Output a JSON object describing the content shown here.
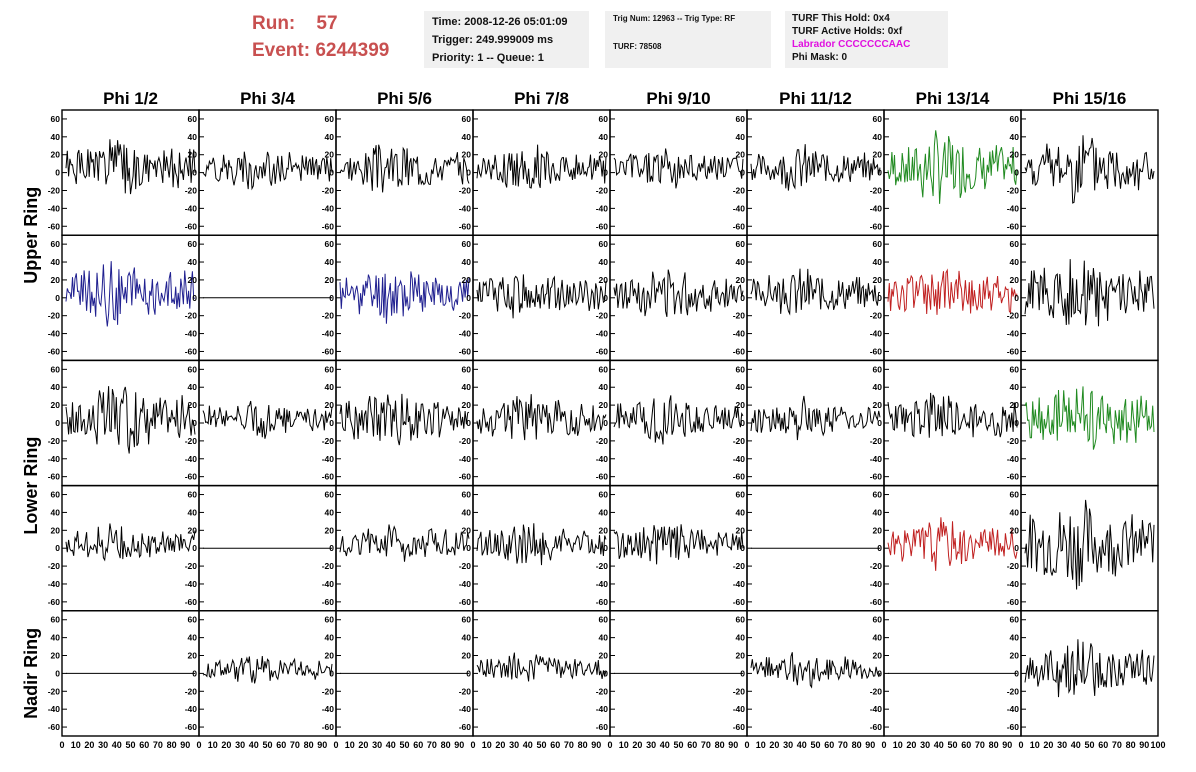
{
  "run_label": "Run:",
  "run_value": "57",
  "event_label": "Event:",
  "event_value": "6244399",
  "info_box_1": {
    "time": "Time: 2008-12-26 05:01:09",
    "trigger": "Trigger: 249.999009 ms",
    "priority": "Priority: 1 -- Queue: 1"
  },
  "info_box_2": {
    "trig": "Trig Num: 12963 -- Trig Type: RF",
    "turf": "TURF: 78508"
  },
  "info_box_3": {
    "hold": "TURF This Hold: 0x4",
    "active": "TURF Active Holds: 0xf",
    "labrador": "Labrador CCCCCCCAAC",
    "phimask": "Phi Mask: 0"
  },
  "colors": {
    "run": "#c85050",
    "labrador": "#e010e0",
    "black": "#000000",
    "blue": "#202090",
    "green": "#208a20",
    "red": "#c02020"
  },
  "chart_data": {
    "type": "line",
    "columns": [
      "Phi 1/2",
      "Phi 3/4",
      "Phi 5/6",
      "Phi 7/8",
      "Phi 9/10",
      "Phi 11/12",
      "Phi 13/14",
      "Phi 15/16"
    ],
    "rows": [
      "Upper Ring",
      "Upper Ring",
      "Lower Ring",
      "Lower Ring",
      "Nadir Ring"
    ],
    "row_labels": [
      "Upper Ring",
      "Lower Ring",
      "Nadir Ring"
    ],
    "ylim": [
      -70,
      70
    ],
    "yticks": [
      -60,
      -40,
      -20,
      0,
      20,
      40,
      60
    ],
    "xlim": [
      0,
      100
    ],
    "xticks": [
      "0",
      "10",
      "20",
      "30",
      "40",
      "50",
      "60",
      "70",
      "80",
      "90",
      "100"
    ],
    "samples": 100,
    "traces": [
      [
        {
          "c": "black",
          "a": 18,
          "s": 1
        },
        {
          "c": "black",
          "a": 13,
          "s": 2
        },
        {
          "c": "black",
          "a": 16,
          "s": 3
        },
        {
          "c": "black",
          "a": 15,
          "s": 4
        },
        {
          "c": "black",
          "a": 14,
          "s": 5
        },
        {
          "c": "black",
          "a": 14,
          "s": 6
        },
        {
          "c": "green",
          "a": 22,
          "s": 7
        },
        {
          "c": "black",
          "a": 22,
          "s": 8
        }
      ],
      [
        {
          "c": "blue",
          "a": 22,
          "s": 9
        },
        {
          "c": "black",
          "a": 0,
          "s": 10
        },
        {
          "c": "blue",
          "a": 18,
          "s": 11
        },
        {
          "c": "black",
          "a": 16,
          "s": 12
        },
        {
          "c": "black",
          "a": 17,
          "s": 13
        },
        {
          "c": "black",
          "a": 15,
          "s": 14
        },
        {
          "c": "red",
          "a": 18,
          "s": 15
        },
        {
          "c": "black",
          "a": 24,
          "s": 16
        }
      ],
      [
        {
          "c": "black",
          "a": 22,
          "s": 17
        },
        {
          "c": "black",
          "a": 12,
          "s": 18
        },
        {
          "c": "black",
          "a": 18,
          "s": 19
        },
        {
          "c": "black",
          "a": 15,
          "s": 20
        },
        {
          "c": "black",
          "a": 15,
          "s": 21
        },
        {
          "c": "black",
          "a": 13,
          "s": 22
        },
        {
          "c": "black",
          "a": 17,
          "s": 23
        },
        {
          "c": "green",
          "a": 22,
          "s": 24
        }
      ],
      [
        {
          "c": "black",
          "a": 12,
          "s": 25
        },
        {
          "c": "black",
          "a": 0,
          "s": 26
        },
        {
          "c": "black",
          "a": 13,
          "s": 27
        },
        {
          "c": "black",
          "a": 14,
          "s": 28
        },
        {
          "c": "black",
          "a": 14,
          "s": 29
        },
        {
          "c": "black",
          "a": 0,
          "s": 30
        },
        {
          "c": "red",
          "a": 16,
          "s": 31
        },
        {
          "c": "black",
          "a": 28,
          "s": 32
        }
      ],
      [
        {
          "c": "black",
          "a": 0,
          "s": 33
        },
        {
          "c": "black",
          "a": 10,
          "s": 34
        },
        {
          "c": "black",
          "a": 0,
          "s": 35
        },
        {
          "c": "black",
          "a": 10,
          "s": 36
        },
        {
          "c": "black",
          "a": 0,
          "s": 37
        },
        {
          "c": "black",
          "a": 11,
          "s": 38
        },
        {
          "c": "black",
          "a": 0,
          "s": 39
        },
        {
          "c": "black",
          "a": 19,
          "s": 40
        }
      ]
    ]
  }
}
